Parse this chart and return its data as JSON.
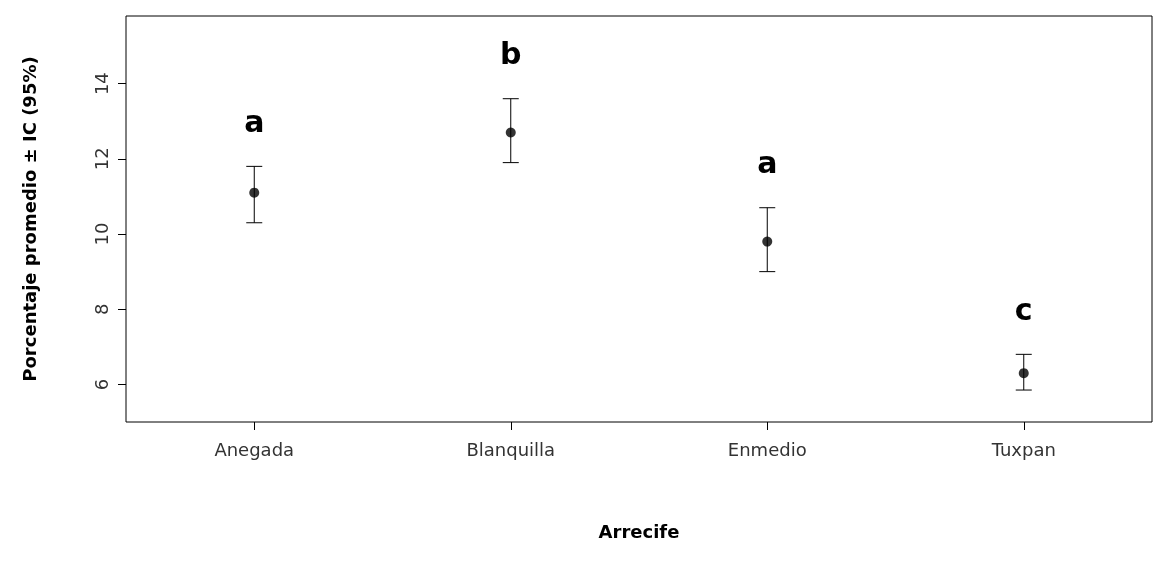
{
  "chart_data": {
    "type": "scatter",
    "xlabel": "Arrecife",
    "ylabel": "Porcentaje promedio ± IC (95%)",
    "categories": [
      "Anegada",
      "Blanquilla",
      "Enmedio",
      "Tuxpan"
    ],
    "values": [
      11.1,
      12.7,
      9.8,
      6.3
    ],
    "errors": [
      [
        10.3,
        11.8
      ],
      [
        11.9,
        13.6
      ],
      [
        9.0,
        10.7
      ],
      [
        5.85,
        6.8
      ]
    ],
    "color": "#000000",
    "marker": "circle",
    "grid": false,
    "ylim": [
      5,
      15.8
    ],
    "yticks": [
      6,
      8,
      10,
      12,
      14
    ],
    "annotations": [
      "a",
      "b",
      "a",
      "c"
    ]
  }
}
